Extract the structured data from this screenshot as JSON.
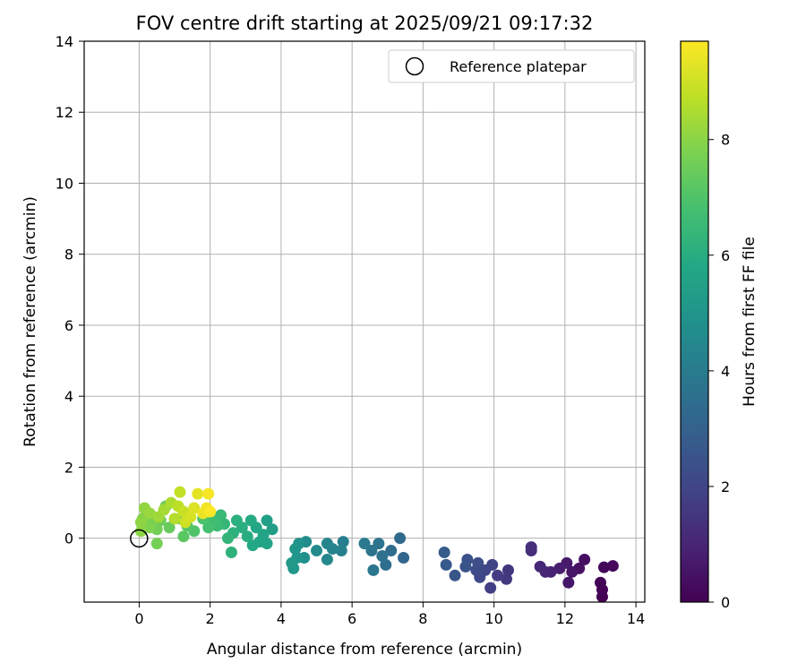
{
  "chart_data": {
    "type": "scatter",
    "title": "FOV centre drift starting at 2025/09/21 09:17:32",
    "xlabel": "Angular distance from reference (arcmin)",
    "ylabel": "Rotation from reference (arcmin)",
    "xlim": [
      -1.55,
      14.25
    ],
    "ylim": [
      -1.8,
      14
    ],
    "xticks": [
      "0",
      "2",
      "4",
      "6",
      "8",
      "10",
      "12",
      "14"
    ],
    "yticks": [
      "0",
      "2",
      "4",
      "6",
      "8",
      "10",
      "12",
      "14"
    ],
    "grid": true,
    "legend": {
      "position": "top-right",
      "label": "Reference platepar"
    },
    "reference_point": {
      "x": 0,
      "y": 0
    },
    "colorbar": {
      "label": "Hours from first FF file",
      "range": [
        0,
        9.7
      ],
      "ticks": [
        "0",
        "2",
        "4",
        "6",
        "8"
      ],
      "colormap": "viridis"
    },
    "points": [
      {
        "x": 13.05,
        "y": -1.65,
        "h": 0.0
      },
      {
        "x": 13.05,
        "y": -1.45,
        "h": 0.05
      },
      {
        "x": 13.0,
        "y": -1.25,
        "h": 0.1
      },
      {
        "x": 13.1,
        "y": -0.82,
        "h": 0.15
      },
      {
        "x": 13.35,
        "y": -0.78,
        "h": 0.2
      },
      {
        "x": 12.55,
        "y": -0.6,
        "h": 0.35
      },
      {
        "x": 12.4,
        "y": -0.85,
        "h": 0.45
      },
      {
        "x": 12.2,
        "y": -0.95,
        "h": 0.55
      },
      {
        "x": 12.1,
        "y": -1.25,
        "h": 0.6
      },
      {
        "x": 12.05,
        "y": -0.7,
        "h": 0.7
      },
      {
        "x": 11.85,
        "y": -0.85,
        "h": 0.8
      },
      {
        "x": 11.6,
        "y": -0.95,
        "h": 0.9
      },
      {
        "x": 11.45,
        "y": -0.95,
        "h": 1.0
      },
      {
        "x": 11.3,
        "y": -0.8,
        "h": 1.1
      },
      {
        "x": 11.05,
        "y": -0.35,
        "h": 1.25
      },
      {
        "x": 11.05,
        "y": -0.25,
        "h": 1.3
      },
      {
        "x": 10.4,
        "y": -0.9,
        "h": 1.5
      },
      {
        "x": 10.35,
        "y": -1.15,
        "h": 1.6
      },
      {
        "x": 10.1,
        "y": -1.05,
        "h": 1.7
      },
      {
        "x": 9.9,
        "y": -1.4,
        "h": 1.8
      },
      {
        "x": 9.95,
        "y": -0.75,
        "h": 1.9
      },
      {
        "x": 9.75,
        "y": -0.9,
        "h": 2.0
      },
      {
        "x": 9.6,
        "y": -1.1,
        "h": 2.1
      },
      {
        "x": 9.5,
        "y": -0.9,
        "h": 2.2
      },
      {
        "x": 9.55,
        "y": -0.7,
        "h": 2.3
      },
      {
        "x": 9.25,
        "y": -0.6,
        "h": 2.4
      },
      {
        "x": 9.2,
        "y": -0.8,
        "h": 2.5
      },
      {
        "x": 8.9,
        "y": -1.05,
        "h": 2.6
      },
      {
        "x": 8.65,
        "y": -0.75,
        "h": 2.7
      },
      {
        "x": 8.6,
        "y": -0.4,
        "h": 2.8
      },
      {
        "x": 7.45,
        "y": -0.55,
        "h": 3.2
      },
      {
        "x": 7.35,
        "y": 0.0,
        "h": 3.3
      },
      {
        "x": 7.1,
        "y": -0.35,
        "h": 3.4
      },
      {
        "x": 6.95,
        "y": -0.75,
        "h": 3.5
      },
      {
        "x": 6.85,
        "y": -0.5,
        "h": 3.6
      },
      {
        "x": 6.75,
        "y": -0.15,
        "h": 3.7
      },
      {
        "x": 6.6,
        "y": -0.9,
        "h": 3.75
      },
      {
        "x": 6.55,
        "y": -0.35,
        "h": 3.8
      },
      {
        "x": 6.35,
        "y": -0.15,
        "h": 3.9
      },
      {
        "x": 5.75,
        "y": -0.1,
        "h": 4.1
      },
      {
        "x": 5.7,
        "y": -0.35,
        "h": 4.2
      },
      {
        "x": 5.45,
        "y": -0.3,
        "h": 4.3
      },
      {
        "x": 5.3,
        "y": -0.15,
        "h": 4.4
      },
      {
        "x": 5.3,
        "y": -0.6,
        "h": 4.5
      },
      {
        "x": 5.0,
        "y": -0.35,
        "h": 4.6
      },
      {
        "x": 4.7,
        "y": -0.1,
        "h": 4.7
      },
      {
        "x": 4.65,
        "y": -0.55,
        "h": 4.8
      },
      {
        "x": 4.5,
        "y": -0.15,
        "h": 4.9
      },
      {
        "x": 4.45,
        "y": -0.55,
        "h": 5.0
      },
      {
        "x": 4.4,
        "y": -0.3,
        "h": 5.05
      },
      {
        "x": 4.35,
        "y": -0.85,
        "h": 5.1
      },
      {
        "x": 4.3,
        "y": -0.7,
        "h": 5.15
      },
      {
        "x": 3.75,
        "y": 0.25,
        "h": 5.4
      },
      {
        "x": 3.6,
        "y": 0.5,
        "h": 5.5
      },
      {
        "x": 3.6,
        "y": -0.15,
        "h": 5.55
      },
      {
        "x": 3.5,
        "y": 0.1,
        "h": 5.6
      },
      {
        "x": 3.4,
        "y": -0.1,
        "h": 5.7
      },
      {
        "x": 3.3,
        "y": 0.3,
        "h": 5.75
      },
      {
        "x": 3.2,
        "y": -0.2,
        "h": 5.8
      },
      {
        "x": 3.15,
        "y": 0.5,
        "h": 5.9
      },
      {
        "x": 3.05,
        "y": 0.05,
        "h": 6.0
      },
      {
        "x": 2.9,
        "y": 0.3,
        "h": 6.05
      },
      {
        "x": 2.75,
        "y": 0.5,
        "h": 6.1
      },
      {
        "x": 2.65,
        "y": 0.15,
        "h": 6.15
      },
      {
        "x": 2.6,
        "y": -0.4,
        "h": 6.2
      },
      {
        "x": 2.5,
        "y": 0.0,
        "h": 6.3
      },
      {
        "x": 2.4,
        "y": 0.4,
        "h": 6.4
      },
      {
        "x": 2.3,
        "y": 0.65,
        "h": 6.5
      },
      {
        "x": 2.2,
        "y": 0.35,
        "h": 6.6
      },
      {
        "x": 2.05,
        "y": 0.5,
        "h": 6.7
      },
      {
        "x": 1.95,
        "y": 0.3,
        "h": 6.8
      },
      {
        "x": 1.8,
        "y": 0.55,
        "h": 6.9
      },
      {
        "x": 1.55,
        "y": 0.2,
        "h": 7.0
      },
      {
        "x": 1.35,
        "y": 0.35,
        "h": 7.1
      },
      {
        "x": 1.25,
        "y": 0.05,
        "h": 7.2
      },
      {
        "x": 1.15,
        "y": 0.55,
        "h": 7.3
      },
      {
        "x": 0.85,
        "y": 0.3,
        "h": 7.4
      },
      {
        "x": 0.75,
        "y": 0.9,
        "h": 7.45
      },
      {
        "x": 0.6,
        "y": 0.5,
        "h": 7.5
      },
      {
        "x": 0.5,
        "y": 0.25,
        "h": 7.6
      },
      {
        "x": 0.5,
        "y": -0.15,
        "h": 7.65
      },
      {
        "x": 0.4,
        "y": 0.5,
        "h": 7.7
      },
      {
        "x": 0.3,
        "y": 0.3,
        "h": 7.8
      },
      {
        "x": 0.2,
        "y": 0.75,
        "h": 7.85
      },
      {
        "x": 0.1,
        "y": 0.55,
        "h": 7.9
      },
      {
        "x": 0.05,
        "y": 0.2,
        "h": 8.0
      },
      {
        "x": 0.05,
        "y": 0.45,
        "h": 8.05
      },
      {
        "x": 0.15,
        "y": 0.85,
        "h": 8.1
      },
      {
        "x": 0.3,
        "y": 0.7,
        "h": 8.2
      },
      {
        "x": 0.55,
        "y": 0.6,
        "h": 8.3
      },
      {
        "x": 0.7,
        "y": 0.8,
        "h": 8.4
      },
      {
        "x": 0.9,
        "y": 1.0,
        "h": 8.5
      },
      {
        "x": 1.0,
        "y": 0.55,
        "h": 8.6
      },
      {
        "x": 1.1,
        "y": 0.9,
        "h": 8.7
      },
      {
        "x": 1.15,
        "y": 1.3,
        "h": 8.8
      },
      {
        "x": 1.25,
        "y": 0.75,
        "h": 8.9
      },
      {
        "x": 1.3,
        "y": 0.45,
        "h": 9.0
      },
      {
        "x": 1.45,
        "y": 0.6,
        "h": 9.1
      },
      {
        "x": 1.55,
        "y": 0.85,
        "h": 9.2
      },
      {
        "x": 1.65,
        "y": 1.25,
        "h": 9.3
      },
      {
        "x": 1.8,
        "y": 0.7,
        "h": 9.4
      },
      {
        "x": 1.9,
        "y": 0.85,
        "h": 9.5
      },
      {
        "x": 1.95,
        "y": 1.25,
        "h": 9.6
      },
      {
        "x": 2.0,
        "y": 0.75,
        "h": 9.65
      }
    ]
  }
}
